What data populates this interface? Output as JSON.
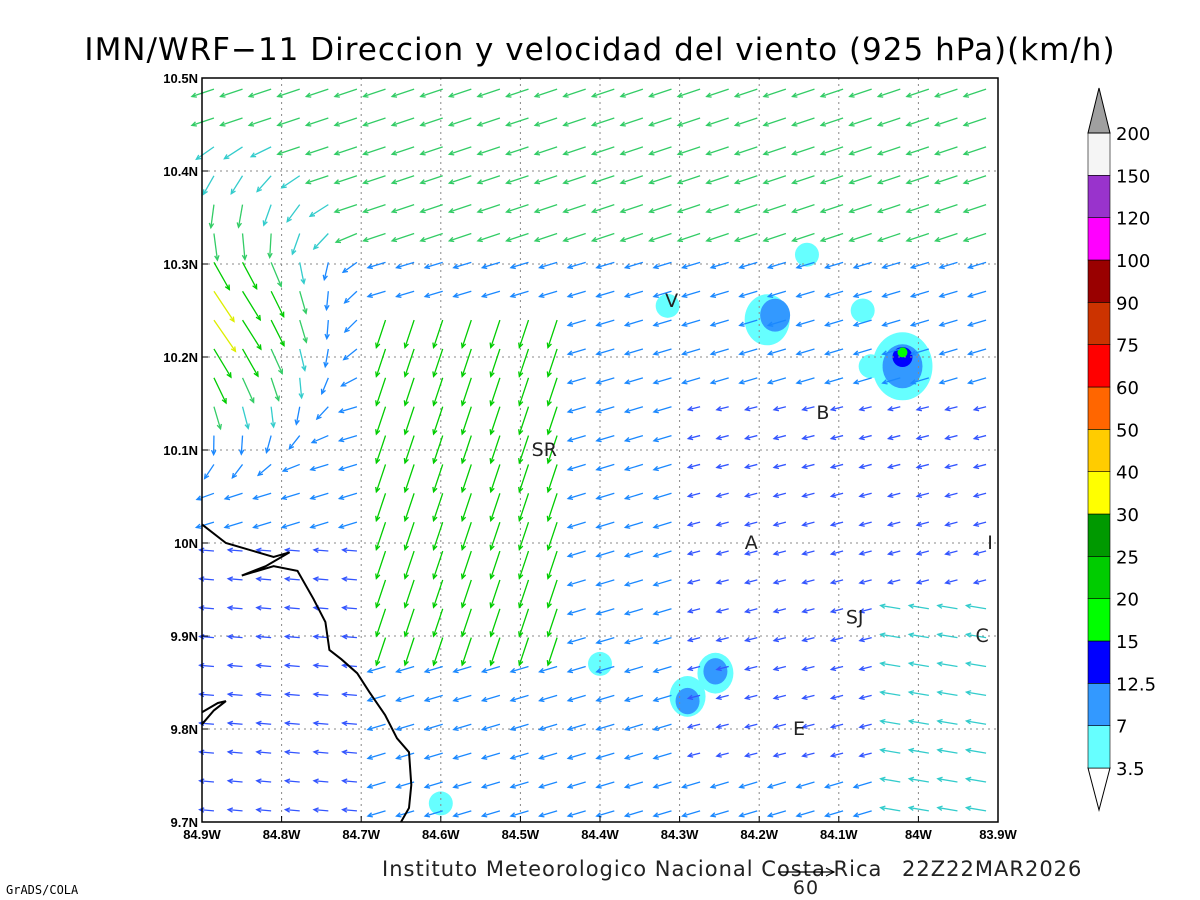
{
  "title": "IMN/WRF−11 Direccion y velocidad del viento (925 hPa)(km/h)",
  "footer": {
    "credit": "Instituto Meteorologico Nacional Costa Rica",
    "valid_time": "22Z22MAR2026",
    "software": "GrADS/COLA",
    "reference_vector": "60"
  },
  "axes": {
    "x_ticks": [
      "84.9W",
      "84.8W",
      "84.7W",
      "84.6W",
      "84.5W",
      "84.4W",
      "84.3W",
      "84.2W",
      "84.1W",
      "84W",
      "83.9W"
    ],
    "y_ticks": [
      "10.5N",
      "10.4N",
      "10.3N",
      "10.2N",
      "10.1N",
      "10N",
      "9.9N",
      "9.8N",
      "9.7N"
    ],
    "lon_range": [
      -84.9,
      -83.9
    ],
    "lat_range": [
      9.7,
      10.5
    ]
  },
  "colorbar": {
    "labels": [
      "3.5",
      "7",
      "12.5",
      "15",
      "20",
      "25",
      "30",
      "40",
      "50",
      "60",
      "75",
      "90",
      "100",
      "120",
      "150",
      "200"
    ],
    "colors": [
      "#66ffff",
      "#3399ff",
      "#0000ff",
      "#00ff00",
      "#00cc00",
      "#009900",
      "#ffff00",
      "#ffcc00",
      "#ff6600",
      "#ff0000",
      "#cc3300",
      "#990000",
      "#ff00ff",
      "#9933cc",
      "#f5f5f5",
      "#a0a0a0"
    ]
  },
  "cities": [
    {
      "label": "V",
      "lon": -84.31,
      "lat": 10.26
    },
    {
      "label": "SR",
      "lon": -84.47,
      "lat": 10.1
    },
    {
      "label": "B",
      "lon": -84.12,
      "lat": 10.14
    },
    {
      "label": "A",
      "lon": -84.21,
      "lat": 10.0
    },
    {
      "label": "SJ",
      "lon": -84.08,
      "lat": 9.92
    },
    {
      "label": "C",
      "lon": -83.92,
      "lat": 9.9
    },
    {
      "label": "E",
      "lon": -84.15,
      "lat": 9.8
    },
    {
      "label": "I",
      "lon": -83.91,
      "lat": 10.0
    }
  ],
  "contour_patches": [
    {
      "lon": -84.02,
      "lat": 10.19,
      "level": "3.5"
    },
    {
      "lon": -84.02,
      "lat": 10.19,
      "level": "7"
    },
    {
      "lon": -84.02,
      "lat": 10.2,
      "level": "12.5"
    },
    {
      "lon": -84.02,
      "lat": 10.205,
      "level": "15"
    },
    {
      "lon": -84.19,
      "lat": 10.24,
      "level": "3.5"
    },
    {
      "lon": -84.18,
      "lat": 10.245,
      "level": "7"
    },
    {
      "lon": -84.29,
      "lat": 9.835,
      "level": "3.5"
    },
    {
      "lon": -84.29,
      "lat": 9.83,
      "level": "7"
    },
    {
      "lon": -84.255,
      "lat": 9.86,
      "level": "3.5"
    },
    {
      "lon": -84.255,
      "lat": 9.862,
      "level": "7"
    },
    {
      "lon": -84.14,
      "lat": 10.31,
      "level": "3.5"
    },
    {
      "lon": -84.07,
      "lat": 10.25,
      "level": "3.5"
    },
    {
      "lon": -84.06,
      "lat": 10.19,
      "level": "3.5"
    },
    {
      "lon": -84.315,
      "lat": 10.255,
      "level": "3.5"
    },
    {
      "lon": -84.4,
      "lat": 9.87,
      "level": "3.5"
    },
    {
      "lon": -84.6,
      "lat": 9.72,
      "level": "3.5"
    }
  ],
  "coastline": [
    [
      -84.9,
      10.02
    ],
    [
      -84.87,
      10.0
    ],
    [
      -84.83,
      9.99
    ],
    [
      -84.81,
      9.985
    ],
    [
      -84.79,
      9.99
    ],
    [
      -84.82,
      9.975
    ],
    [
      -84.85,
      9.965
    ],
    [
      -84.81,
      9.975
    ],
    [
      -84.78,
      9.97
    ],
    [
      -84.76,
      9.94
    ],
    [
      -84.745,
      9.915
    ],
    [
      -84.74,
      9.885
    ],
    [
      -84.725,
      9.875
    ],
    [
      -84.705,
      9.86
    ],
    [
      -84.69,
      9.84
    ],
    [
      -84.67,
      9.815
    ],
    [
      -84.655,
      9.79
    ],
    [
      -84.64,
      9.775
    ],
    [
      -84.637,
      9.74
    ],
    [
      -84.64,
      9.715
    ],
    [
      -84.65,
      9.7
    ]
  ],
  "coastline_south": [
    [
      -84.9,
      9.805
    ],
    [
      -84.885,
      9.82
    ],
    [
      -84.87,
      9.83
    ],
    [
      -84.88,
      9.828
    ],
    [
      -84.9,
      9.818
    ]
  ]
}
